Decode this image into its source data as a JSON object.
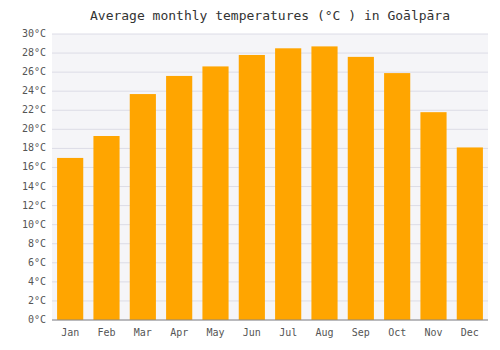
{
  "chart_data": {
    "type": "bar",
    "title": "Average monthly temperatures (°C ) in Goālpāra",
    "categories": [
      "Jan",
      "Feb",
      "Mar",
      "Apr",
      "May",
      "Jun",
      "Jul",
      "Aug",
      "Sep",
      "Oct",
      "Nov",
      "Dec"
    ],
    "values": [
      17.0,
      19.3,
      23.7,
      25.6,
      26.6,
      27.8,
      28.5,
      28.7,
      27.6,
      25.9,
      21.8,
      18.1
    ],
    "color": "#FFA500",
    "ylim": [
      0,
      30
    ],
    "yticks": [
      {
        "value": 0,
        "label": "0°C"
      },
      {
        "value": 2,
        "label": "2°C"
      },
      {
        "value": 4,
        "label": "4°C"
      },
      {
        "value": 6,
        "label": "6°C"
      },
      {
        "value": 8,
        "label": "8°C"
      },
      {
        "value": 10,
        "label": "10°C"
      },
      {
        "value": 12,
        "label": "12°C"
      },
      {
        "value": 14,
        "label": "14°C"
      },
      {
        "value": 16,
        "label": "16°C"
      },
      {
        "value": 18,
        "label": "18°C"
      },
      {
        "value": 20,
        "label": "20°C"
      },
      {
        "value": 22,
        "label": "22°C"
      },
      {
        "value": 24,
        "label": "24°C"
      },
      {
        "value": 26,
        "label": "26°C"
      },
      {
        "value": 28,
        "label": "28°C"
      },
      {
        "value": 30,
        "label": "30°C"
      }
    ],
    "grid": true
  }
}
